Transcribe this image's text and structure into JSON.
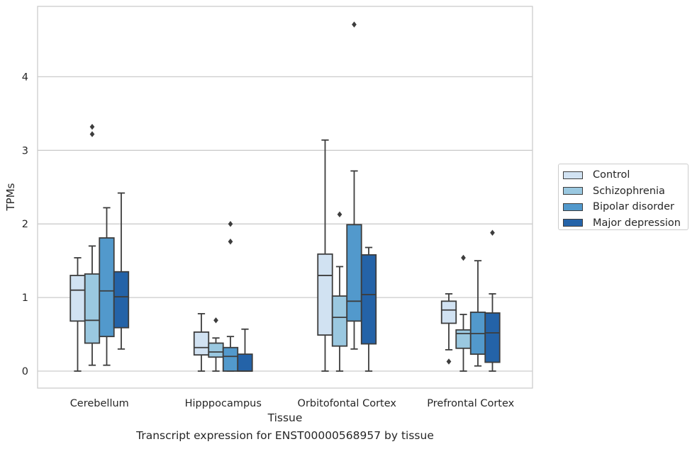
{
  "chart_data": {
    "type": "box",
    "title": "Transcript expression for ENST00000568957 by tissue",
    "xlabel": "Tissue",
    "ylabel": "TPMs",
    "ylim": [
      -0.22,
      4.95
    ],
    "yticks": [
      0,
      1,
      2,
      3,
      4
    ],
    "grid": "horizontal",
    "legend_position": "right",
    "categories": [
      "Cerebellum",
      "Hipppocampus",
      "Orbitofontal Cortex",
      "Prefrontal Cortex"
    ],
    "series": [
      {
        "name": "Control",
        "color": "#d1e2f2",
        "boxes": [
          {
            "whislo": 0.0,
            "q1": 0.68,
            "med": 1.1,
            "q3": 1.3,
            "whishi": 1.54,
            "fliers": []
          },
          {
            "whislo": 0.0,
            "q1": 0.22,
            "med": 0.32,
            "q3": 0.53,
            "whishi": 0.78,
            "fliers": []
          },
          {
            "whislo": 0.0,
            "q1": 0.49,
            "med": 1.3,
            "q3": 1.59,
            "whishi": 3.14,
            "fliers": []
          },
          {
            "whislo": 0.29,
            "q1": 0.65,
            "med": 0.83,
            "q3": 0.95,
            "whishi": 1.05,
            "fliers": [
              0.13
            ]
          }
        ]
      },
      {
        "name": "Schizophrenia",
        "color": "#9ac8e0",
        "boxes": [
          {
            "whislo": 0.08,
            "q1": 0.38,
            "med": 0.69,
            "q3": 1.32,
            "whishi": 1.7,
            "fliers": [
              3.22,
              3.32
            ]
          },
          {
            "whislo": 0.0,
            "q1": 0.19,
            "med": 0.26,
            "q3": 0.38,
            "whishi": 0.45,
            "fliers": [
              0.69
            ]
          },
          {
            "whislo": 0.0,
            "q1": 0.34,
            "med": 0.73,
            "q3": 1.02,
            "whishi": 1.42,
            "fliers": [
              2.13
            ]
          },
          {
            "whislo": 0.0,
            "q1": 0.31,
            "med": 0.51,
            "q3": 0.56,
            "whishi": 0.77,
            "fliers": [
              1.54
            ]
          }
        ]
      },
      {
        "name": "Bipolar disorder",
        "color": "#5299cc",
        "boxes": [
          {
            "whislo": 0.08,
            "q1": 0.47,
            "med": 1.09,
            "q3": 1.81,
            "whishi": 2.22,
            "fliers": []
          },
          {
            "whislo": 0.0,
            "q1": 0.0,
            "med": 0.2,
            "q3": 0.32,
            "whishi": 0.47,
            "fliers": [
              1.76,
              2.0
            ]
          },
          {
            "whislo": 0.3,
            "q1": 0.68,
            "med": 0.95,
            "q3": 1.99,
            "whishi": 2.72,
            "fliers": [
              4.71
            ]
          },
          {
            "whislo": 0.07,
            "q1": 0.23,
            "med": 0.51,
            "q3": 0.8,
            "whishi": 1.5,
            "fliers": []
          }
        ]
      },
      {
        "name": "Major depression",
        "color": "#2463a8",
        "boxes": [
          {
            "whislo": 0.3,
            "q1": 0.59,
            "med": 1.01,
            "q3": 1.35,
            "whishi": 2.42,
            "fliers": []
          },
          {
            "whislo": 0.0,
            "q1": 0.0,
            "med": 0.0,
            "q3": 0.23,
            "whishi": 0.57,
            "fliers": []
          },
          {
            "whislo": 0.0,
            "q1": 0.37,
            "med": 1.04,
            "q3": 1.58,
            "whishi": 1.68,
            "fliers": []
          },
          {
            "whislo": 0.0,
            "q1": 0.12,
            "med": 0.52,
            "q3": 0.79,
            "whishi": 1.05,
            "fliers": [
              1.88
            ]
          }
        ]
      }
    ]
  }
}
